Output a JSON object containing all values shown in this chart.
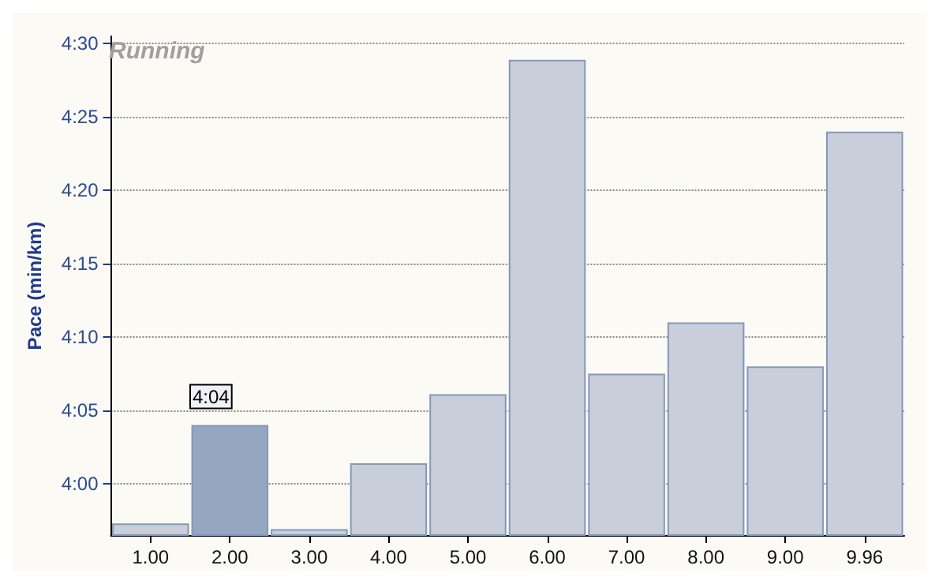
{
  "chart_data": {
    "type": "bar",
    "title": "Running",
    "ylabel": "Pace (min/km)",
    "categories": [
      "1.00",
      "2.00",
      "3.00",
      "4.00",
      "5.00",
      "6.00",
      "7.00",
      "8.00",
      "9.00",
      "9.96"
    ],
    "values": [
      237.3,
      244,
      236.9,
      241.4,
      246.1,
      268.9,
      247.5,
      251,
      248,
      264
    ],
    "colors": [
      "#c8ceda",
      "#94a6c0",
      "#c8ceda",
      "#c8ceda",
      "#c8ceda",
      "#c8ceda",
      "#c8ceda",
      "#c8ceda",
      "#c8ceda",
      "#c8ceda"
    ],
    "ylim": [
      236.5,
      270.5
    ],
    "yticks": [
      {
        "value": 240,
        "label": "4:00"
      },
      {
        "value": 245,
        "label": "4:05"
      },
      {
        "value": 250,
        "label": "4:10"
      },
      {
        "value": 255,
        "label": "4:15"
      },
      {
        "value": 260,
        "label": "4:20"
      },
      {
        "value": 265,
        "label": "4:25"
      },
      {
        "value": 270,
        "label": "4:30"
      }
    ],
    "grid": "y",
    "annotations": [
      {
        "text": "4:04",
        "x": "2.00",
        "y": 244
      }
    ]
  }
}
